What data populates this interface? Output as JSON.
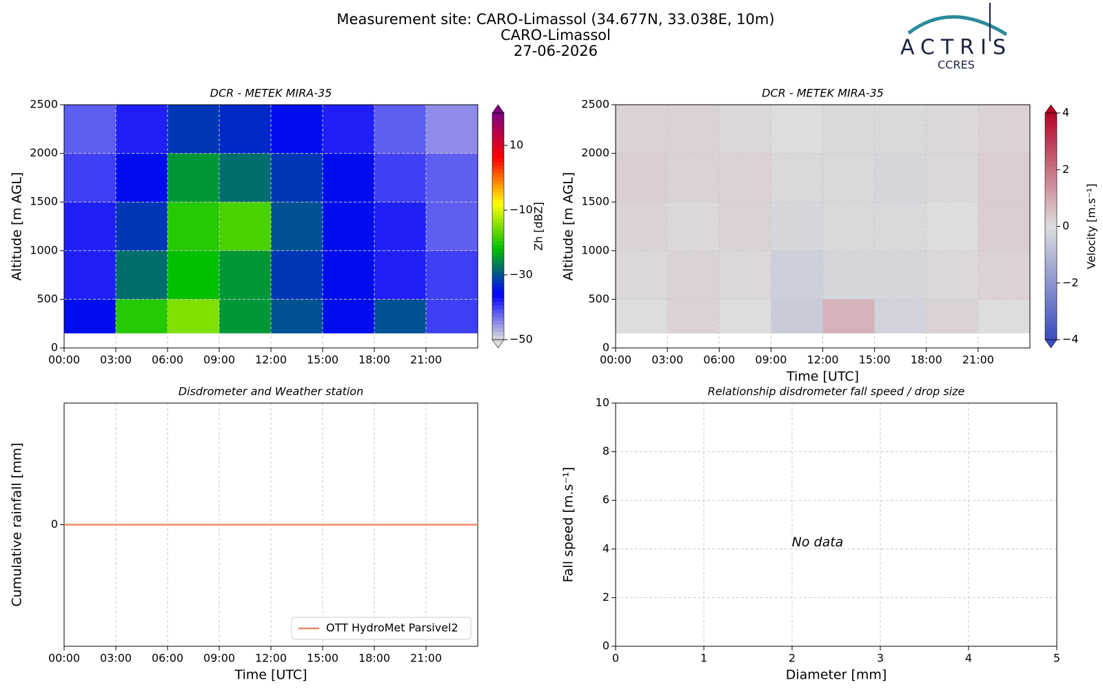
{
  "header": {
    "lines": [
      "Measurement site: CARO-Limassol (34.677N, 33.038E, 10m)",
      "CARO-Limassol",
      "27-06-2026"
    ],
    "logo": {
      "text": "ACTRIS",
      "subtitle": "CCRES"
    }
  },
  "chart_data": [
    {
      "type": "heatmap",
      "title": "DCR - METEK MIRA-35",
      "y_label": "Altitude [m AGL]",
      "xlim": [
        0,
        24
      ],
      "xticks": [
        {
          "value": 0,
          "label": "00:00"
        },
        {
          "value": 3,
          "label": "03:00"
        },
        {
          "value": 6,
          "label": "06:00"
        },
        {
          "value": 9,
          "label": "09:00"
        },
        {
          "value": 12,
          "label": "12:00"
        },
        {
          "value": 15,
          "label": "15:00"
        },
        {
          "value": 18,
          "label": "18:00"
        },
        {
          "value": 21,
          "label": "21:00"
        }
      ],
      "ylim": [
        0,
        2500
      ],
      "yticks": [
        0,
        500,
        1000,
        1500,
        2000,
        2500
      ],
      "grid": true,
      "x_edges": [
        0,
        3,
        6,
        9,
        12,
        15,
        18,
        21,
        24
      ],
      "y_edges": [
        150,
        500,
        1000,
        1500,
        2000,
        2500
      ],
      "z": [
        [
          -35,
          -20,
          -15,
          -25,
          -30,
          -35,
          -30,
          -40
        ],
        [
          -38,
          -28,
          -22,
          -25,
          -32,
          -35,
          -38,
          -40
        ],
        [
          -38,
          -32,
          -20,
          -18,
          -30,
          -35,
          -38,
          -42
        ],
        [
          -40,
          -35,
          -25,
          -28,
          -32,
          -35,
          -40,
          -42
        ],
        [
          -42,
          -38,
          -32,
          -33,
          -35,
          -38,
          -42,
          -45
        ]
      ],
      "zlim": [
        -50,
        20
      ],
      "zticks": [
        {
          "value": -50,
          "label": "−50"
        },
        {
          "value": -30,
          "label": "−30"
        },
        {
          "value": -10,
          "label": "−10"
        },
        10
      ],
      "colorbar_label": "Zh [dBZ]",
      "colormap": [
        "#dcdcdc",
        "#0000ff",
        "#00c000",
        "#ffff00",
        "#ff0000",
        "#800080"
      ]
    },
    {
      "type": "heatmap",
      "title": "DCR - METEK MIRA-35",
      "x_label": "Time [UTC]",
      "y_label": "Altitude [m AGL]",
      "xlim": [
        0,
        24
      ],
      "xticks": [
        {
          "value": 0,
          "label": "00:00"
        },
        {
          "value": 3,
          "label": "03:00"
        },
        {
          "value": 6,
          "label": "06:00"
        },
        {
          "value": 9,
          "label": "09:00"
        },
        {
          "value": 12,
          "label": "12:00"
        },
        {
          "value": 15,
          "label": "15:00"
        },
        {
          "value": 18,
          "label": "18:00"
        },
        {
          "value": 21,
          "label": "21:00"
        }
      ],
      "ylim": [
        0,
        2500
      ],
      "yticks": [
        0,
        500,
        1000,
        1500,
        2000,
        2500
      ],
      "grid": true,
      "x_edges": [
        0,
        3,
        6,
        9,
        12,
        15,
        18,
        21,
        24
      ],
      "y_edges": [
        150,
        500,
        1000,
        1500,
        2000,
        2500
      ],
      "z": [
        [
          0,
          0.2,
          0,
          -0.5,
          0.8,
          -0.3,
          0.2,
          0
        ],
        [
          0.1,
          0.2,
          0.1,
          -0.4,
          -0.2,
          -0.2,
          0.1,
          0.2
        ],
        [
          0.2,
          0.1,
          0.2,
          -0.2,
          -0.1,
          -0.1,
          0,
          0.3
        ],
        [
          0.3,
          0.2,
          0.2,
          -0.1,
          -0.1,
          -0.2,
          0.1,
          0.3
        ],
        [
          0.2,
          0.2,
          0.1,
          0,
          -0.1,
          -0.1,
          0.1,
          0.2
        ]
      ],
      "zlim": [
        -4,
        4
      ],
      "zticks": [
        {
          "value": -4,
          "label": "−4"
        },
        {
          "value": -2,
          "label": "−2"
        },
        0,
        2,
        4
      ],
      "colorbar_label": "Velocity [m.s⁻¹]",
      "colormap": [
        "#3b4cc0",
        "#dddddd",
        "#b40426"
      ]
    },
    {
      "type": "line",
      "title": "Disdrometer and Weather station",
      "x_label": "Time [UTC]",
      "y_label": "Cumulative rainfall [mm]",
      "xlim": [
        0,
        24
      ],
      "xticks": [
        {
          "value": 0,
          "label": "00:00"
        },
        {
          "value": 3,
          "label": "03:00"
        },
        {
          "value": 6,
          "label": "06:00"
        },
        {
          "value": 9,
          "label": "09:00"
        },
        {
          "value": 12,
          "label": "12:00"
        },
        {
          "value": 15,
          "label": "15:00"
        },
        {
          "value": 18,
          "label": "18:00"
        },
        {
          "value": 21,
          "label": "21:00"
        }
      ],
      "ylim": [
        -0.055,
        0.055
      ],
      "yticks": [
        0
      ],
      "grid": true,
      "legend": "lower right",
      "x": [
        0,
        24
      ],
      "series": [
        {
          "name": "OTT HydroMet Parsivel2",
          "color": "#ee8a62",
          "values": [
            0,
            0
          ]
        }
      ]
    },
    {
      "type": "scatter",
      "title": "Relationship disdrometer fall speed / drop size",
      "x_label": "Diameter [mm]",
      "y_label": "Fall speed [m.s⁻¹]",
      "xlim": [
        0,
        5
      ],
      "xticks": [
        0,
        1,
        2,
        3,
        4,
        5
      ],
      "ylim": [
        0,
        10
      ],
      "yticks": [
        0,
        2,
        4,
        6,
        8,
        10
      ],
      "grid": true,
      "annotation": "No data"
    }
  ]
}
